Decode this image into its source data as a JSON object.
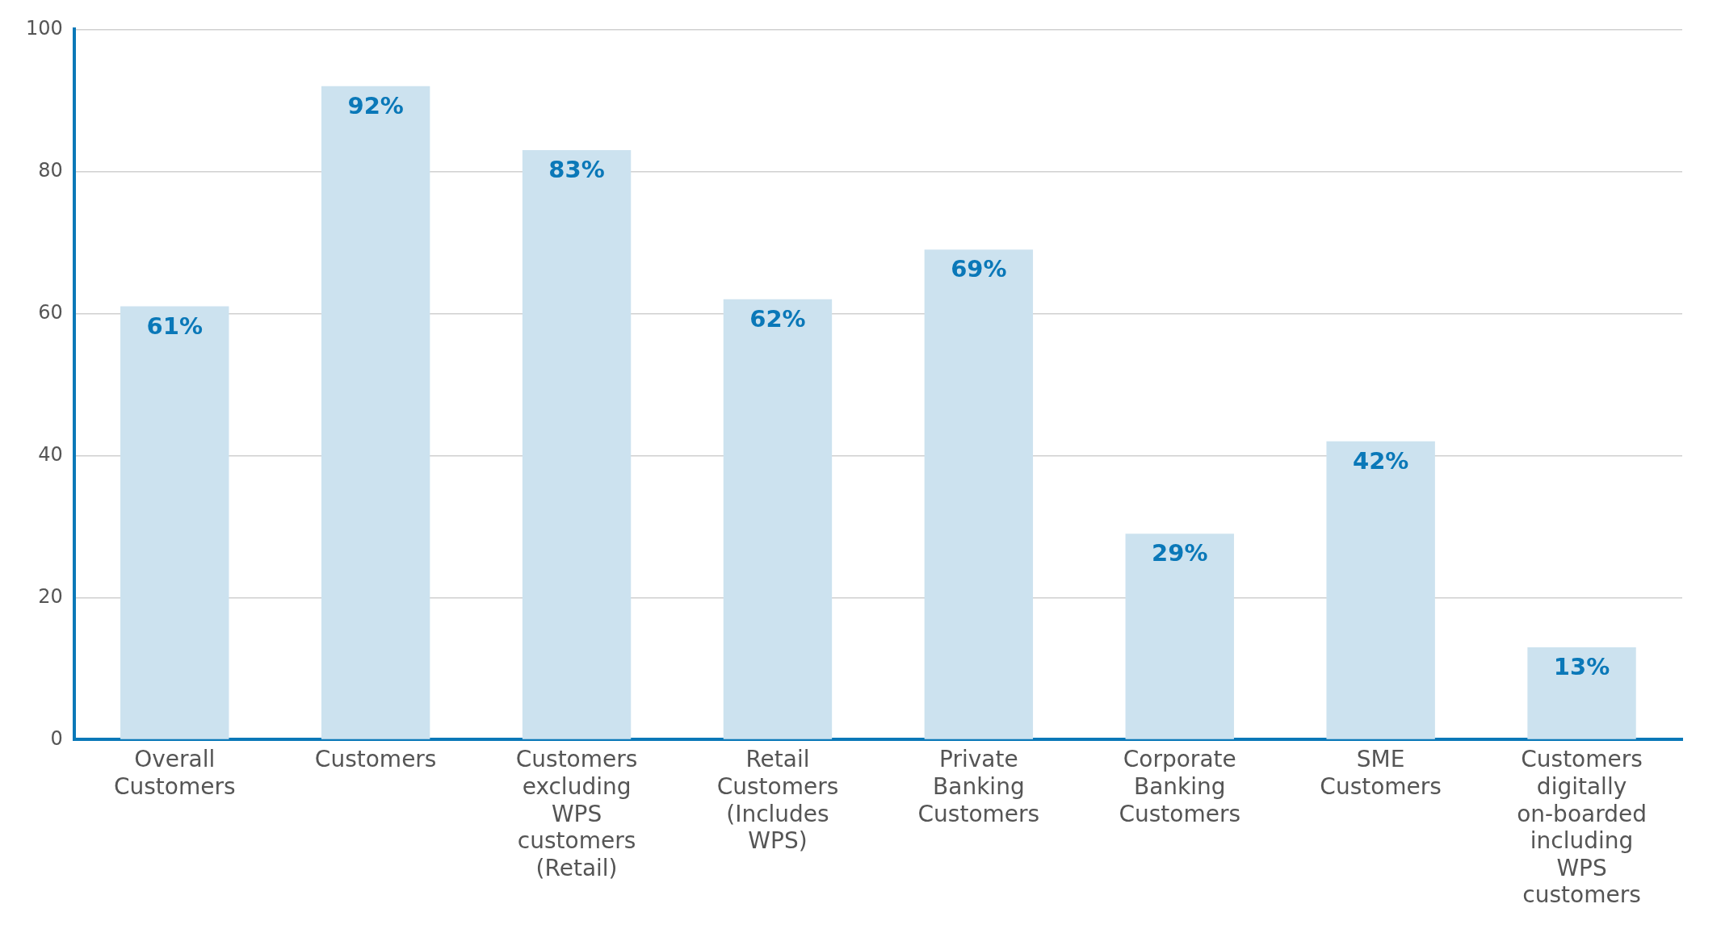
{
  "chart_data": {
    "type": "bar",
    "categories": [
      "Overall Customers",
      "Customers",
      "Customers excluding WPS customers (Retail)",
      "Retail Customers (Includes WPS)",
      "Private Banking Customers",
      "Corporate Banking Customers",
      "SME Customers",
      "Customers digitally on-boarded including WPS customers"
    ],
    "values": [
      61,
      92,
      83,
      62,
      69,
      29,
      42,
      13
    ],
    "value_labels": [
      "61%",
      "92%",
      "83%",
      "62%",
      "69%",
      "29%",
      "42%",
      "13%"
    ],
    "color": "#cce2ef",
    "ylim": [
      0,
      100
    ],
    "yticks": [
      0,
      20,
      40,
      60,
      80,
      100
    ],
    "grid": "y",
    "legend": false
  }
}
